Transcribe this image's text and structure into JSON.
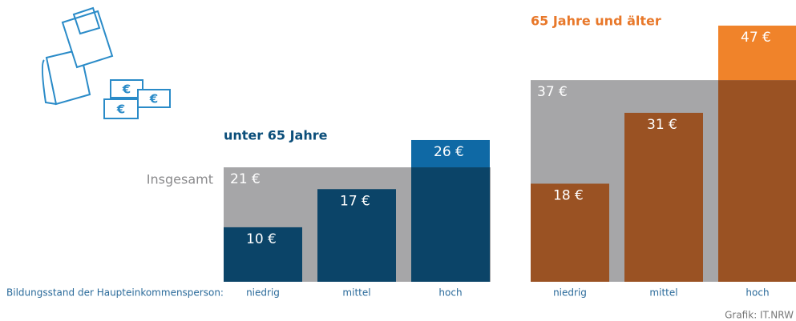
{
  "axis_label": "Bildungsstand der Haupteinkommensperson:",
  "source": "Grafik: IT.NRW",
  "chart_data": [
    {
      "type": "bar",
      "title": "unter 65 Jahre",
      "categories": [
        "niedrig",
        "mittel",
        "hoch"
      ],
      "values": [
        10,
        17,
        26
      ],
      "value_labels": [
        "10 €",
        "17 €",
        "26 €"
      ],
      "color": "#0b4468",
      "above_total_color": "#0f69a5",
      "title_color": "#0b4e7a",
      "total": {
        "name": "Insgesamt",
        "value": 21,
        "value_label": "21 €",
        "color": "#a6a6a8"
      },
      "ylim": [
        0,
        47
      ]
    },
    {
      "type": "bar",
      "title": "65 Jahre und älter",
      "categories": [
        "niedrig",
        "mittel",
        "hoch"
      ],
      "values": [
        18,
        31,
        47
      ],
      "value_labels": [
        "18 €",
        "31 €",
        "47 €"
      ],
      "color": "#9a5223",
      "above_total_color": "#f0832a",
      "title_color": "#e8782a",
      "total": {
        "value": 37,
        "value_label": "37 €",
        "color": "#a6a6a8"
      },
      "ylim": [
        0,
        47
      ]
    }
  ]
}
